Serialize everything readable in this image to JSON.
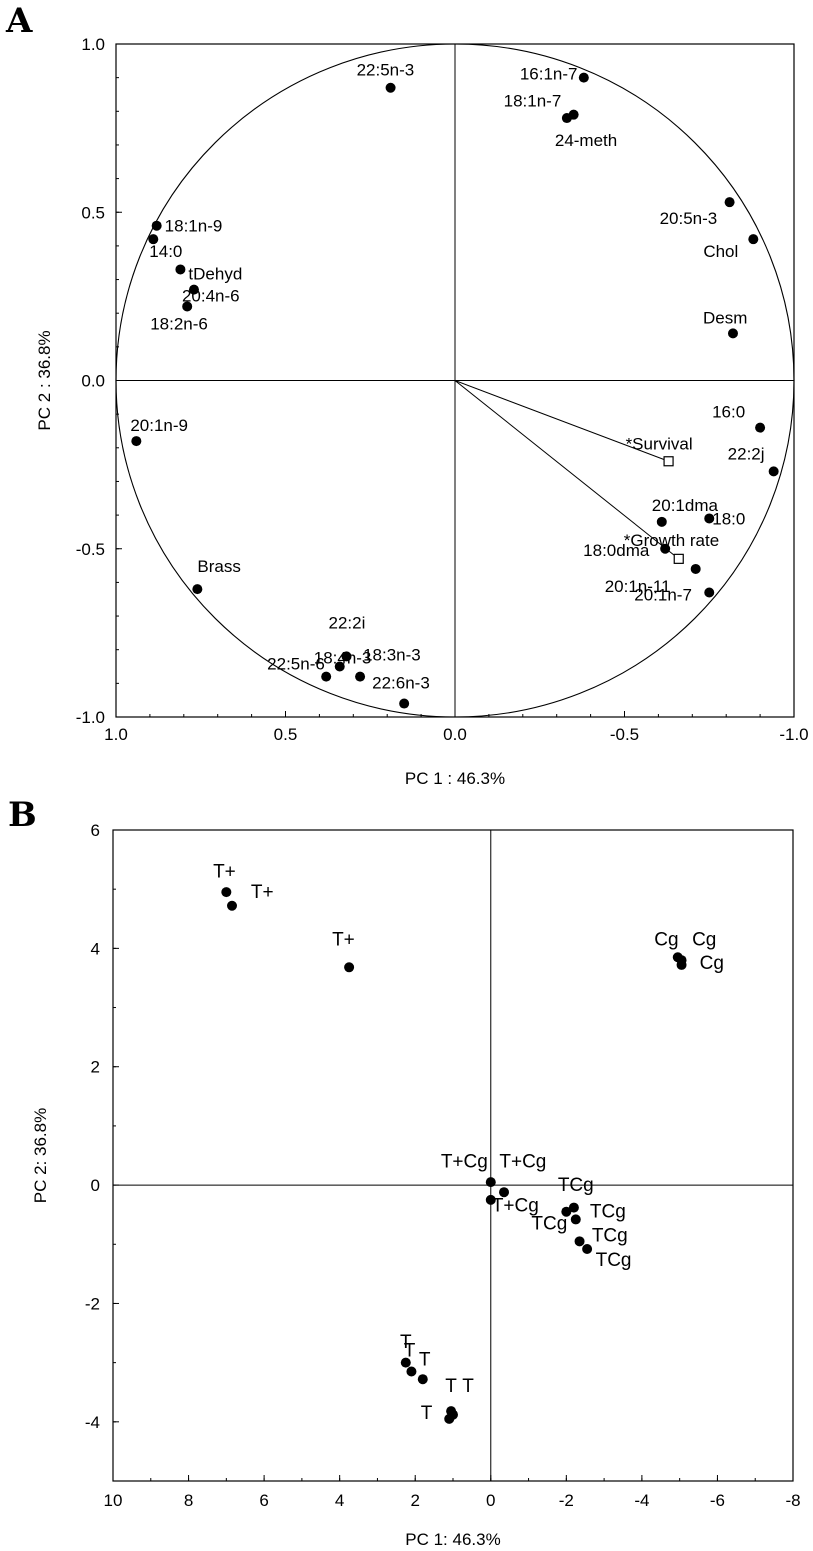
{
  "chart_data": [
    {
      "panel": "A",
      "type": "scatter",
      "xlabel": "PC 1 : 46.3%",
      "ylabel": "PC 2 : 36.8%",
      "xlim": [
        1.0,
        -1.0
      ],
      "ylim": [
        -1.0,
        1.0
      ],
      "x_ticks": [
        "1.0",
        "0.5",
        "0.0",
        "-0.5",
        "-1.0"
      ],
      "y_ticks": [
        "1.0",
        "0.5",
        "0.0",
        "-0.5",
        "-1.0"
      ],
      "unit_circle": true,
      "points": [
        {
          "label": "22:5n-3",
          "x": 0.19,
          "y": 0.87
        },
        {
          "label": "16:1n-7",
          "x": -0.38,
          "y": 0.9
        },
        {
          "label": "18:1n-7",
          "x": -0.35,
          "y": 0.79
        },
        {
          "label": "24-meth",
          "x": -0.33,
          "y": 0.78
        },
        {
          "label": "20:5n-3",
          "x": -0.81,
          "y": 0.53
        },
        {
          "label": "Chol",
          "x": -0.88,
          "y": 0.42
        },
        {
          "label": "Desm",
          "x": -0.82,
          "y": 0.14
        },
        {
          "label": "18:1n-9",
          "x": 0.88,
          "y": 0.46
        },
        {
          "label": "14:0",
          "x": 0.89,
          "y": 0.42
        },
        {
          "label": "tDehyd",
          "x": 0.81,
          "y": 0.33
        },
        {
          "label": "20:4n-6",
          "x": 0.77,
          "y": 0.27
        },
        {
          "label": "18:2n-6",
          "x": 0.79,
          "y": 0.22
        },
        {
          "label": "20:1n-9",
          "x": 0.94,
          "y": -0.18
        },
        {
          "label": "16:0",
          "x": -0.9,
          "y": -0.14
        },
        {
          "label": "22:2j",
          "x": -0.94,
          "y": -0.27
        },
        {
          "label": "20:1dma",
          "x": -0.61,
          "y": -0.42
        },
        {
          "label": "18:0",
          "x": -0.75,
          "y": -0.41
        },
        {
          "label": "18:0dma",
          "x": -0.62,
          "y": -0.5
        },
        {
          "label": "20:1n-11",
          "x": -0.71,
          "y": -0.56
        },
        {
          "label": "20:1n-7",
          "x": -0.75,
          "y": -0.63
        },
        {
          "label": "Brass",
          "x": 0.76,
          "y": -0.62
        },
        {
          "label": "22:2i",
          "x": 0.32,
          "y": -0.82
        },
        {
          "label": "18:4n-3",
          "x": 0.34,
          "y": -0.85
        },
        {
          "label": "22:5n-6",
          "x": 0.38,
          "y": -0.88
        },
        {
          "label": "18:3n-3",
          "x": 0.28,
          "y": -0.88
        },
        {
          "label": "22:6n-3",
          "x": 0.15,
          "y": -0.96
        }
      ],
      "supplementary": [
        {
          "label": "*Survival",
          "x": -0.63,
          "y": -0.24
        },
        {
          "label": "*Growth rate",
          "x": -0.66,
          "y": -0.53
        }
      ]
    },
    {
      "panel": "B",
      "type": "scatter",
      "xlabel": "PC 1: 46.3%",
      "ylabel": "PC 2: 36.8%",
      "xlim": [
        10,
        -8
      ],
      "ylim": [
        -5,
        6
      ],
      "x_ticks": [
        "10",
        "8",
        "6",
        "4",
        "2",
        "0",
        "-2",
        "-4",
        "-6",
        "-8"
      ],
      "y_ticks": [
        "6",
        "4",
        "2",
        "0",
        "-2",
        "-4"
      ],
      "points": [
        {
          "label": "T+",
          "x": 7.0,
          "y": 4.95
        },
        {
          "label": "T+",
          "x": 6.85,
          "y": 4.72
        },
        {
          "label": "T+",
          "x": 3.75,
          "y": 3.68
        },
        {
          "label": "Cg",
          "x": -4.95,
          "y": 3.85
        },
        {
          "label": "Cg",
          "x": -5.05,
          "y": 3.8
        },
        {
          "label": "Cg",
          "x": -5.05,
          "y": 3.72
        },
        {
          "label": "T+Cg",
          "x": 0.0,
          "y": 0.05
        },
        {
          "label": "T+Cg",
          "x": -0.35,
          "y": -0.12
        },
        {
          "label": "T+Cg",
          "x": 0.0,
          "y": -0.25
        },
        {
          "label": "TCg",
          "x": -2.2,
          "y": -0.38
        },
        {
          "label": "TCg",
          "x": -2.0,
          "y": -0.45
        },
        {
          "label": "TCg",
          "x": -2.25,
          "y": -0.58
        },
        {
          "label": "TCg",
          "x": -2.35,
          "y": -0.95
        },
        {
          "label": "TCg",
          "x": -2.55,
          "y": -1.08
        },
        {
          "label": "T",
          "x": 2.25,
          "y": -3.0
        },
        {
          "label": "T",
          "x": 2.1,
          "y": -3.15
        },
        {
          "label": "T",
          "x": 1.8,
          "y": -3.28
        },
        {
          "label": "T",
          "x": 1.05,
          "y": -3.82
        },
        {
          "label": "T",
          "x": 1.0,
          "y": -3.88
        },
        {
          "label": "T",
          "x": 1.1,
          "y": -3.95
        }
      ],
      "text_labels": [
        {
          "text": "T+",
          "x": 7.05,
          "y": 5.2
        },
        {
          "text": "T+",
          "x": 6.05,
          "y": 4.85
        },
        {
          "text": "T+",
          "x": 3.9,
          "y": 4.05
        },
        {
          "text": "Cg",
          "x": -4.65,
          "y": 4.05
        },
        {
          "text": "Cg",
          "x": -5.65,
          "y": 4.05
        },
        {
          "text": "Cg",
          "x": -5.85,
          "y": 3.65
        },
        {
          "text": "T+Cg",
          "x": 0.7,
          "y": 0.3
        },
        {
          "text": "T+Cg",
          "x": -0.85,
          "y": 0.3
        },
        {
          "text": "TCg",
          "x": -2.25,
          "y": -0.1
        },
        {
          "text": "T+Cg",
          "x": -0.65,
          "y": -0.45
        },
        {
          "text": "TCg",
          "x": -1.55,
          "y": -0.75
        },
        {
          "text": "TCg",
          "x": -3.1,
          "y": -0.55
        },
        {
          "text": "TCg",
          "x": -3.15,
          "y": -0.95
        },
        {
          "text": "TCg",
          "x": -3.25,
          "y": -1.37
        },
        {
          "text": "T",
          "x": 2.25,
          "y": -2.75
        },
        {
          "text": "T",
          "x": 2.15,
          "y": -2.9
        },
        {
          "text": "T",
          "x": 1.75,
          "y": -3.05
        },
        {
          "text": "T",
          "x": 1.05,
          "y": -3.5
        },
        {
          "text": "T",
          "x": 0.6,
          "y": -3.5
        },
        {
          "text": "T",
          "x": 1.7,
          "y": -3.95
        }
      ]
    }
  ],
  "panels": {
    "a_letter": "A",
    "b_letter": "B"
  }
}
